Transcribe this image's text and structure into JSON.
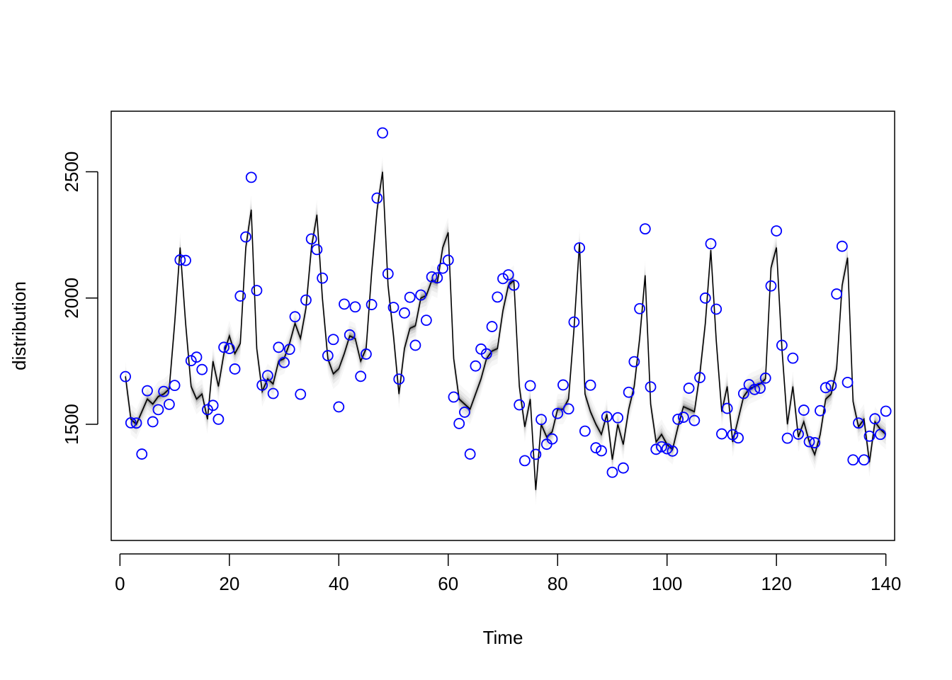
{
  "chart_data": {
    "type": "line",
    "title": "",
    "xlabel": "Time",
    "ylabel": "distribution",
    "xlim": [
      -1.6,
      141.6
    ],
    "ylim": [
      1040,
      2740
    ],
    "x_ticks": [
      0,
      20,
      40,
      60,
      80,
      100,
      120,
      140
    ],
    "x_tick_labels": [
      "0",
      "20",
      "40",
      "60",
      "80",
      "100",
      "120",
      "140"
    ],
    "y_ticks": [
      1500,
      2000,
      2500
    ],
    "y_tick_labels": [
      "1500",
      "2000",
      "2500"
    ],
    "grid": false,
    "legend": "none",
    "colors": {
      "line": "#000000",
      "band": "#000000",
      "points": "#0000ff",
      "axes": "#000000"
    },
    "series": [
      {
        "type": "line",
        "x": [
          1,
          2,
          3,
          4,
          5,
          6,
          7,
          8,
          9,
          10,
          11,
          12,
          13,
          14,
          15,
          16,
          17,
          18,
          19,
          20,
          21,
          22,
          23,
          24,
          25,
          26,
          27,
          28,
          29,
          30,
          31,
          32,
          33,
          34,
          35,
          36,
          37,
          38,
          39,
          40,
          41,
          42,
          43,
          44,
          45,
          46,
          47,
          48,
          49,
          50,
          51,
          52,
          53,
          54,
          55,
          56,
          57,
          58,
          59,
          60,
          61,
          62,
          63,
          64,
          65,
          66,
          67,
          68,
          69,
          70,
          71,
          72,
          73,
          74,
          75,
          76,
          77,
          78,
          79,
          80,
          81,
          82,
          83,
          84,
          85,
          86,
          87,
          88,
          89,
          90,
          91,
          92,
          93,
          94,
          95,
          96,
          97,
          98,
          99,
          100,
          101,
          102,
          103,
          104,
          105,
          106,
          107,
          108,
          109,
          110,
          111,
          112,
          113,
          114,
          115,
          116,
          117,
          118,
          119,
          120,
          121,
          122,
          123,
          124,
          125,
          126,
          127,
          128,
          129,
          130,
          131,
          132,
          133,
          134,
          135,
          136,
          137,
          138,
          139,
          140
        ],
        "y": [
          1690,
          1520,
          1500,
          1550,
          1600,
          1580,
          1610,
          1620,
          1640,
          1900,
          2200,
          1900,
          1650,
          1600,
          1620,
          1520,
          1750,
          1650,
          1780,
          1850,
          1780,
          1820,
          2200,
          2350,
          1800,
          1630,
          1680,
          1660,
          1750,
          1760,
          1820,
          1900,
          1840,
          1960,
          2200,
          2330,
          2000,
          1760,
          1700,
          1720,
          1780,
          1850,
          1840,
          1750,
          1800,
          2100,
          2350,
          2500,
          2050,
          1850,
          1620,
          1800,
          1880,
          1890,
          2000,
          2010,
          2070,
          2060,
          2200,
          2260,
          1760,
          1600,
          1580,
          1560,
          1620,
          1680,
          1760,
          1790,
          1800,
          1950,
          2050,
          2070,
          1650,
          1490,
          1600,
          1240,
          1500,
          1450,
          1470,
          1560,
          1560,
          1600,
          1880,
          2220,
          1620,
          1550,
          1500,
          1460,
          1540,
          1360,
          1500,
          1420,
          1560,
          1650,
          1840,
          2090,
          1580,
          1430,
          1460,
          1420,
          1400,
          1490,
          1570,
          1560,
          1550,
          1700,
          1900,
          2190,
          1830,
          1550,
          1650,
          1430,
          1520,
          1610,
          1640,
          1650,
          1660,
          1680,
          2120,
          2200,
          1800,
          1500,
          1650,
          1450,
          1510,
          1430,
          1380,
          1460,
          1600,
          1620,
          1720,
          2050,
          2160,
          1590,
          1490,
          1520,
          1350,
          1510,
          1480,
          1460
        ]
      },
      {
        "type": "scatter",
        "x": [
          1,
          2,
          3,
          4,
          5,
          6,
          7,
          8,
          9,
          10,
          11,
          12,
          13,
          14,
          15,
          16,
          17,
          18,
          19,
          20,
          21,
          22,
          23,
          24,
          25,
          26,
          27,
          28,
          29,
          30,
          31,
          32,
          33,
          34,
          35,
          36,
          37,
          38,
          39,
          40,
          41,
          42,
          43,
          44,
          45,
          46,
          47,
          48,
          49,
          50,
          51,
          52,
          53,
          54,
          55,
          56,
          57,
          58,
          59,
          60,
          61,
          62,
          63,
          64,
          65,
          66,
          67,
          68,
          69,
          70,
          71,
          72,
          73,
          74,
          75,
          76,
          77,
          78,
          79,
          80,
          81,
          82,
          83,
          84,
          85,
          86,
          87,
          88,
          89,
          90,
          91,
          92,
          93,
          94,
          95,
          96,
          97,
          98,
          99,
          100,
          101,
          102,
          103,
          104,
          105,
          106,
          107,
          108,
          109,
          110,
          111,
          112,
          113,
          114,
          115,
          116,
          117,
          118,
          119,
          120,
          121,
          122,
          123,
          124,
          125,
          126,
          127,
          128,
          129,
          130,
          131,
          132,
          133,
          134,
          135,
          136,
          137,
          138,
          139,
          140
        ],
        "y": [
          1689,
          1506,
          1505,
          1382,
          1633,
          1510,
          1558,
          1630,
          1579,
          1654,
          2151,
          2149,
          1752,
          1766,
          1717,
          1558,
          1575,
          1520,
          1805,
          1800,
          1719,
          2008,
          2242,
          2478,
          2030,
          1655,
          1693,
          1622,
          1805,
          1745,
          1797,
          1926,
          1619,
          1992,
          2234,
          2192,
          2079,
          1772,
          1836,
          1569,
          1976,
          1854,
          1965,
          1690,
          1778,
          1974,
          2396,
          2654,
          2096,
          1963,
          1679,
          1941,
          2003,
          1813,
          2012,
          1912,
          2084,
          2080,
          2118,
          2150,
          1608,
          1503,
          1548,
          1382,
          1731,
          1798,
          1779,
          1887,
          2004,
          2077,
          2092,
          2051,
          1577,
          1356,
          1653,
          1381,
          1519,
          1421,
          1442,
          1543,
          1656,
          1561,
          1905,
          2199,
          1473,
          1655,
          1407,
          1395,
          1530,
          1310,
          1526,
          1327,
          1627,
          1748,
          1958,
          2274,
          1648,
          1401,
          1411,
          1403,
          1394,
          1520,
          1528,
          1643,
          1515,
          1685,
          2000,
          2215,
          1956,
          1462,
          1563,
          1459,
          1446,
          1622,
          1657,
          1638,
          1643,
          1683,
          2048,
          2266,
          1813,
          1445,
          1762,
          1461,
          1556,
          1431,
          1427,
          1554,
          1645,
          1653,
          2016,
          2205,
          1666,
          1359,
          1505,
          1359,
          1453,
          1522,
          1460,
          1552
        ]
      }
    ]
  }
}
